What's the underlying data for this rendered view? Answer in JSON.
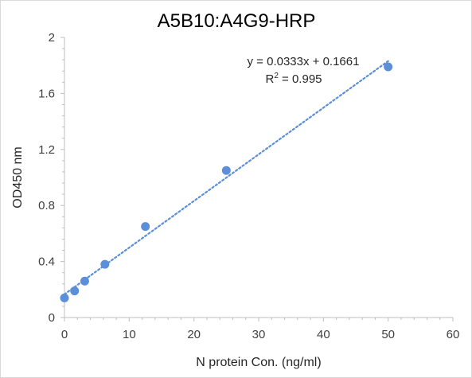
{
  "chart_data": {
    "type": "scatter",
    "title": "A5B10:A4G9-HRP",
    "xlabel": "N protein Con. (ng/ml)",
    "ylabel": "OD450 nm",
    "xlim": [
      0,
      60
    ],
    "ylim": [
      0,
      2
    ],
    "x_ticks": [
      0,
      10,
      20,
      30,
      40,
      50,
      60
    ],
    "y_ticks": [
      0,
      0.4,
      0.8,
      1.2,
      1.6,
      2
    ],
    "x_tick_labels": [
      "0",
      "10",
      "20",
      "30",
      "40",
      "50",
      "60"
    ],
    "y_tick_labels": [
      "0",
      "0.4",
      "0.8",
      "1.2",
      "1.6",
      "2"
    ],
    "grid": false,
    "series": [
      {
        "x": [
          0,
          1.5625,
          3.125,
          6.25,
          12.5,
          25,
          50
        ],
        "y": [
          0.14,
          0.19,
          0.26,
          0.38,
          0.65,
          1.05,
          1.79
        ],
        "color": "#5b8fd9"
      }
    ],
    "trendline": {
      "kind": "linear",
      "slope": 0.0333,
      "intercept": 0.1661,
      "x_range": [
        0,
        50
      ],
      "style": "dotted",
      "color": "#5b8fd9"
    },
    "annotations": {
      "equation": "y = 0.0333x + 0.1661",
      "r_squared_prefix": "R",
      "r_squared_sup": "2",
      "r_squared_value": " = 0.995"
    }
  }
}
